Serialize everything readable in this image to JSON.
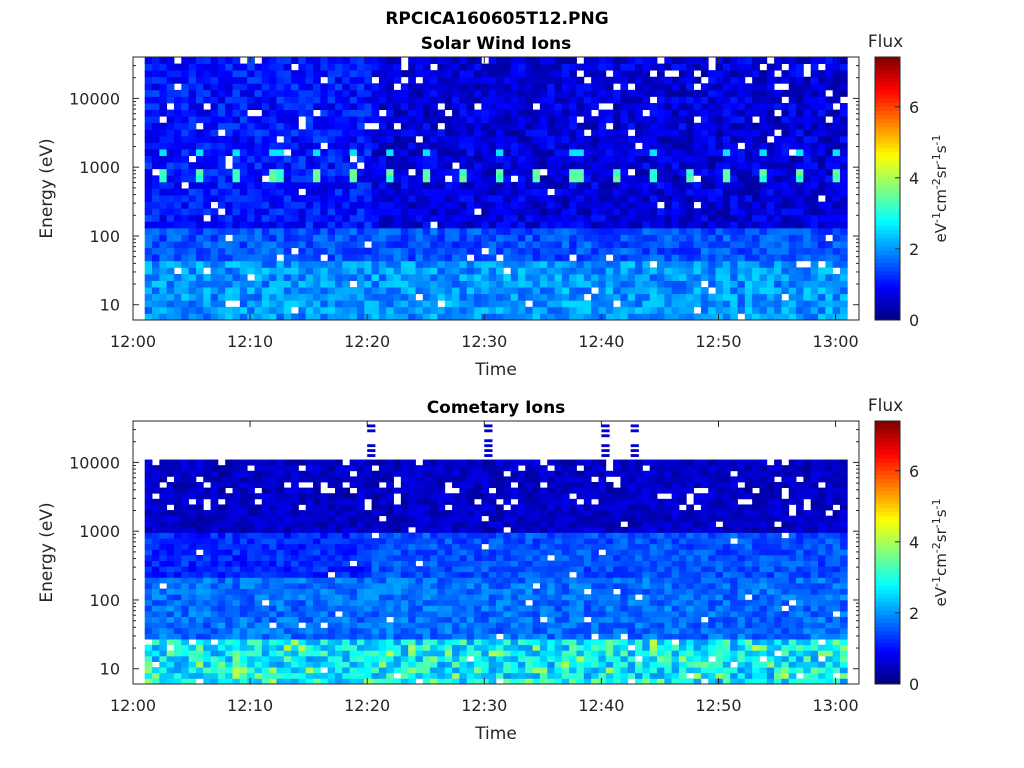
{
  "figure": {
    "file_title": "RPCICA160605T12.PNG"
  },
  "colorbar": {
    "label": "Flux",
    "unit_parts": [
      {
        "text": "eV",
        "sup": false
      },
      {
        "text": "-1",
        "sup": true
      },
      {
        "text": "cm",
        "sup": false
      },
      {
        "text": "-2",
        "sup": true
      },
      {
        "text": "sr",
        "sup": false
      },
      {
        "text": "-1",
        "sup": true
      },
      {
        "text": "s",
        "sup": false
      },
      {
        "text": "-1",
        "sup": true
      }
    ],
    "ticks": [
      0,
      2,
      4,
      6
    ],
    "range": [
      0,
      7.4
    ],
    "colormap": "jet"
  },
  "chart_data": [
    {
      "type": "heatmap",
      "title": "Solar Wind Ions",
      "xlabel": "Time",
      "ylabel": "Energy (eV)",
      "x_tick_labels": [
        "12:00",
        "12:10",
        "12:20",
        "12:30",
        "12:40",
        "12:50",
        "13:00"
      ],
      "x_range_minutes": [
        0,
        62
      ],
      "y_scale": "log",
      "y_tick_values": [
        10,
        100,
        1000,
        10000
      ],
      "y_tick_labels": [
        "10",
        "100",
        "1000",
        "10000"
      ],
      "y_range": [
        6,
        40000
      ],
      "data_extent_minutes": [
        1,
        61
      ],
      "data_energy_range": [
        6,
        40000
      ],
      "features": {
        "background_flux": 0.9,
        "low_energy_band": {
          "energy_max": 40,
          "flux": 2.0
        },
        "change_at_minute": 20,
        "periodic_peaks": {
          "energy": 800,
          "flux": 3.3,
          "period_minutes": 3.2,
          "start_minute": 2
        },
        "secondary_peaks": {
          "energy": 1600,
          "flux": 2.6
        }
      }
    },
    {
      "type": "heatmap",
      "title": "Cometary Ions",
      "xlabel": "Time",
      "ylabel": "Energy (eV)",
      "x_tick_labels": [
        "12:00",
        "12:10",
        "12:20",
        "12:30",
        "12:40",
        "12:50",
        "13:00"
      ],
      "x_range_minutes": [
        0,
        62
      ],
      "y_scale": "log",
      "y_tick_values": [
        10,
        100,
        1000,
        10000
      ],
      "y_tick_labels": [
        "10",
        "100",
        "1000",
        "10000"
      ],
      "y_range": [
        6,
        40000
      ],
      "data_extent_minutes": [
        1,
        61
      ],
      "data_energy_range": [
        6,
        11000
      ],
      "features": {
        "background_flux": 0.5,
        "mid_energy_flux": 1.2,
        "low_energy_band": {
          "energy_max": 25,
          "flux": 2.6
        },
        "change_at_minute": 20,
        "high_energy_bursts_minutes": [
          20,
          30,
          40,
          42.5
        ]
      }
    }
  ]
}
